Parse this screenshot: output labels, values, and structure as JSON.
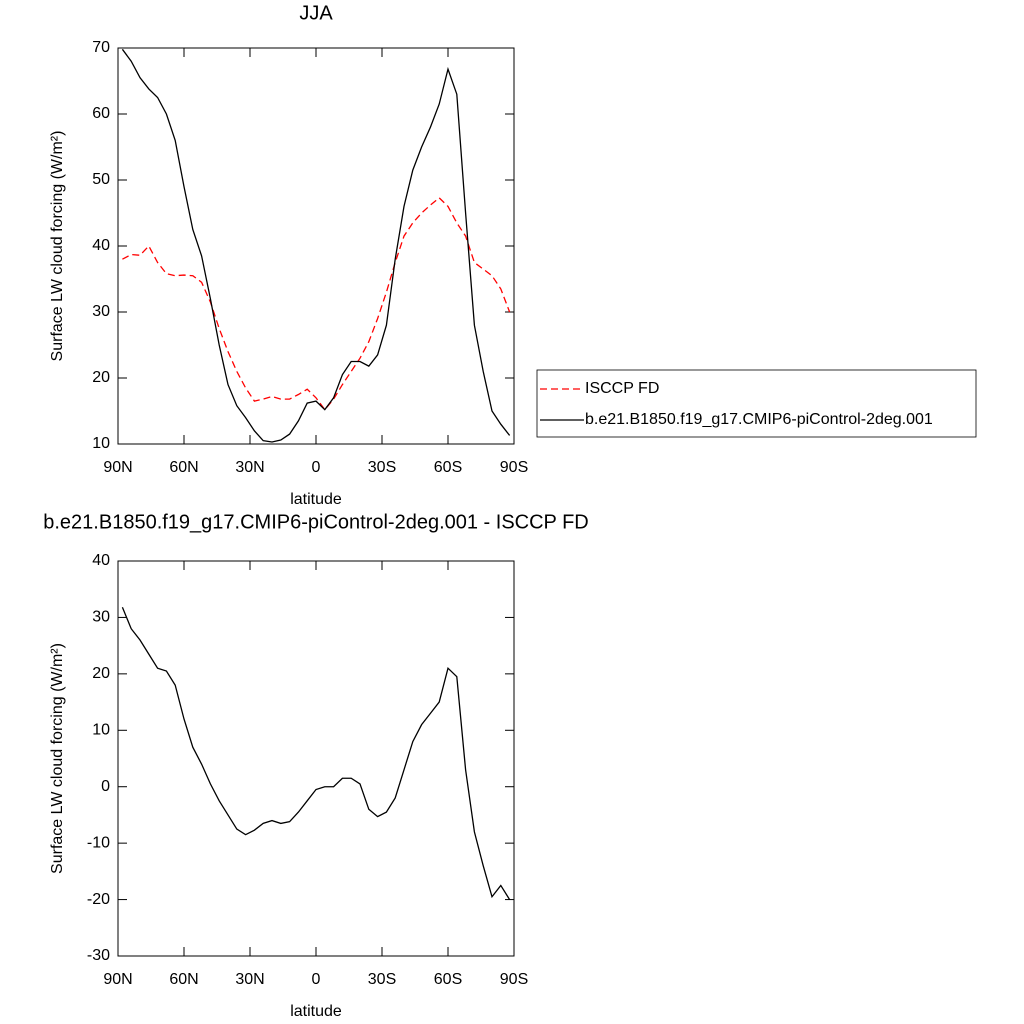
{
  "chart_data": [
    {
      "type": "line",
      "title": "JJA",
      "x_label": "latitude",
      "y_label": "Surface LW cloud forcing (W/m²)",
      "x": [
        88,
        84,
        80,
        76,
        72,
        68,
        64,
        60,
        56,
        52,
        48,
        44,
        40,
        36,
        32,
        28,
        24,
        20,
        16,
        12,
        8,
        4,
        0,
        -4,
        -8,
        -12,
        -16,
        -20,
        -24,
        -28,
        -32,
        -36,
        -40,
        -44,
        -48,
        -52,
        -56,
        -60,
        -64,
        -68,
        -72,
        -76,
        -80,
        -84,
        -88
      ],
      "series": [
        {
          "name": "ISCCP FD",
          "color": "#ff0000",
          "dashed": true,
          "values": [
            38,
            38.7,
            38.6,
            40,
            37.5,
            35.8,
            35.5,
            35.6,
            35.5,
            34.5,
            31.5,
            27.5,
            24,
            21,
            18.5,
            16.5,
            16.8,
            17.2,
            16.8,
            16.8,
            17.5,
            18.3,
            17,
            15.2,
            16.8,
            19,
            21,
            23,
            25.5,
            29,
            33,
            37.5,
            41.5,
            43.5,
            45,
            46.2,
            47.3,
            46,
            43.5,
            41.5,
            37.5,
            36.5,
            35.5,
            33.5,
            30
          ]
        },
        {
          "name": "b.e21.B1850.f19_g17.CMIP6-piControl-2deg.001",
          "color": "#000000",
          "dashed": false,
          "values": [
            69.8,
            68,
            65.5,
            63.8,
            62.5,
            60,
            56,
            49,
            42.5,
            38.5,
            32,
            25,
            19,
            15.8,
            14,
            12,
            10.5,
            10.3,
            10.6,
            11.5,
            13.5,
            16.2,
            16.5,
            15.2,
            17,
            20.5,
            22.5,
            22.5,
            21.8,
            23.5,
            28,
            38,
            46,
            51.5,
            55,
            58,
            61.5,
            66.8,
            63,
            45,
            28,
            21,
            15,
            13,
            11.3
          ]
        }
      ],
      "xlim": [
        90,
        -90
      ],
      "xticks": [
        {
          "value": 90,
          "label": "90N"
        },
        {
          "value": 60,
          "label": "60N"
        },
        {
          "value": 30,
          "label": "30N"
        },
        0,
        {
          "value": -30,
          "label": "30S"
        },
        {
          "value": -60,
          "label": "60S"
        },
        {
          "value": -90,
          "label": "90S"
        }
      ],
      "ylim": [
        10,
        70
      ],
      "yticks": [
        10,
        20,
        30,
        40,
        50,
        60,
        70
      ],
      "legend": "right"
    },
    {
      "type": "line",
      "title": "b.e21.B1850.f19_g17.CMIP6-piControl-2deg.001 - ISCCP FD",
      "x_label": "latitude",
      "y_label": "Surface LW cloud forcing (W/m²)",
      "x": [
        88,
        84,
        80,
        76,
        72,
        68,
        64,
        60,
        56,
        52,
        48,
        44,
        40,
        36,
        32,
        28,
        24,
        20,
        16,
        12,
        8,
        4,
        0,
        -4,
        -8,
        -12,
        -16,
        -20,
        -24,
        -28,
        -32,
        -36,
        -40,
        -44,
        -48,
        -52,
        -56,
        -60,
        -64,
        -68,
        -72,
        -76,
        -80,
        -84,
        -88
      ],
      "color": "#000000",
      "values": [
        31.8,
        28,
        26,
        23.5,
        21,
        20.5,
        18,
        12,
        7,
        4,
        0.5,
        -2.5,
        -5,
        -7.5,
        -8.5,
        -7.7,
        -6.5,
        -6,
        -6.5,
        -6.2,
        -4.5,
        -2.5,
        -0.5,
        0,
        0,
        1.5,
        1.5,
        0.5,
        -4,
        -5.3,
        -4.5,
        -2,
        3,
        8,
        11,
        13,
        15,
        21,
        19.5,
        3,
        -8,
        -14,
        -19.5,
        -17.5,
        -20
      ],
      "xlim": [
        90,
        -90
      ],
      "xticks": [
        {
          "value": 90,
          "label": "90N"
        },
        {
          "value": 60,
          "label": "60N"
        },
        {
          "value": 30,
          "label": "30N"
        },
        0,
        {
          "value": -30,
          "label": "30S"
        },
        {
          "value": -60,
          "label": "60S"
        },
        {
          "value": -90,
          "label": "90S"
        }
      ],
      "ylim": [
        -30,
        40
      ],
      "yticks": [
        -30,
        -20,
        -10,
        0,
        10,
        20,
        30,
        40
      ]
    }
  ]
}
